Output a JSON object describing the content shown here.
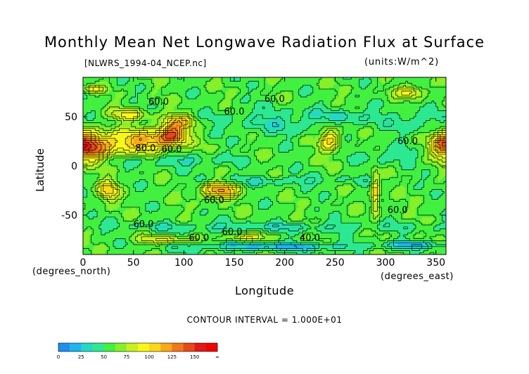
{
  "chart_data": {
    "type": "heatmap",
    "title": "Monthly Mean Net Longwave Radiation Flux at Surface",
    "subtitle_left": "[NLWRS_1994-04_NCEP.nc]",
    "units": "(units:W/m^2)",
    "xlabel": "Longitude",
    "ylabel": "Latitude",
    "x_unit_label": "(degrees_east)",
    "y_unit_label": "(degrees_north)",
    "xlim": [
      0,
      360
    ],
    "ylim": [
      -90,
      90
    ],
    "x_ticks": [
      0,
      50,
      100,
      150,
      200,
      250,
      300,
      350
    ],
    "y_ticks": [
      50,
      0,
      -50
    ],
    "contour_interval_text": "CONTOUR INTERVAL = 1.000E+01",
    "contour_labels": [
      {
        "text": "60.0",
        "lon": 75,
        "lat": 62
      },
      {
        "text": "60.0",
        "lon": 190,
        "lat": 65
      },
      {
        "text": "60.0",
        "lon": 150,
        "lat": 52
      },
      {
        "text": "80.0",
        "lon": 62,
        "lat": 15
      },
      {
        "text": "60.0",
        "lon": 88,
        "lat": 14
      },
      {
        "text": "60.0",
        "lon": 322,
        "lat": 22
      },
      {
        "text": "60.0",
        "lon": 130,
        "lat": -38
      },
      {
        "text": "60.0",
        "lon": 312,
        "lat": -48
      },
      {
        "text": "60.0",
        "lon": 60,
        "lat": -62
      },
      {
        "text": "60.0",
        "lon": 115,
        "lat": -76
      },
      {
        "text": "60.0",
        "lon": 148,
        "lat": -70
      },
      {
        "text": "40.0",
        "lon": 225,
        "lat": -76
      }
    ],
    "colorbar": {
      "ticks": [
        "0",
        "25",
        "50",
        "75",
        "100",
        "125",
        "150",
        "∞"
      ],
      "colors": [
        "#1e8ff0",
        "#20b4f0",
        "#24d8c8",
        "#2ce890",
        "#42f040",
        "#86f028",
        "#c8f020",
        "#f8f818",
        "#f8d818",
        "#f8a818",
        "#f07818",
        "#e84818",
        "#e01818",
        "#f00000"
      ]
    },
    "field": {
      "background": 57,
      "blobs": [
        {
          "lon": 0,
          "lat": 20,
          "rx": 28,
          "ry": 14,
          "v": 150
        },
        {
          "lon": 60,
          "lat": 25,
          "rx": 35,
          "ry": 12,
          "v": 110
        },
        {
          "lon": 88,
          "lat": 32,
          "rx": 14,
          "ry": 10,
          "v": 125
        },
        {
          "lon": 95,
          "lat": 45,
          "rx": 15,
          "ry": 8,
          "v": 100
        },
        {
          "lon": 45,
          "lat": 52,
          "rx": 20,
          "ry": 6,
          "v": 90
        },
        {
          "lon": 360,
          "lat": 22,
          "rx": 14,
          "ry": 14,
          "v": 140
        },
        {
          "lon": 245,
          "lat": 28,
          "rx": 10,
          "ry": 14,
          "v": 105
        },
        {
          "lon": 325,
          "lat": 75,
          "rx": 14,
          "ry": 6,
          "v": 95
        },
        {
          "lon": 10,
          "lat": 78,
          "rx": 10,
          "ry": 4,
          "v": 88
        },
        {
          "lon": 25,
          "lat": -25,
          "rx": 10,
          "ry": 10,
          "v": 105
        },
        {
          "lon": 135,
          "lat": -25,
          "rx": 18,
          "ry": 8,
          "v": 120
        },
        {
          "lon": 290,
          "lat": -28,
          "rx": 4,
          "ry": 20,
          "v": 110
        },
        {
          "lon": 80,
          "lat": -75,
          "rx": 25,
          "ry": 4,
          "v": 90
        },
        {
          "lon": 160,
          "lat": -73,
          "rx": 20,
          "ry": 4,
          "v": 88
        },
        {
          "lon": 95,
          "lat": 5,
          "rx": 50,
          "ry": 6,
          "v": 38
        },
        {
          "lon": 195,
          "lat": 45,
          "rx": 60,
          "ry": 14,
          "v": 40
        },
        {
          "lon": 265,
          "lat": 50,
          "rx": 30,
          "ry": 8,
          "v": 40
        },
        {
          "lon": 330,
          "lat": 45,
          "rx": 25,
          "ry": 12,
          "v": 40
        },
        {
          "lon": 300,
          "lat": 10,
          "rx": 25,
          "ry": 8,
          "v": 40
        },
        {
          "lon": 200,
          "lat": -15,
          "rx": 80,
          "ry": 5,
          "v": 42
        },
        {
          "lon": 180,
          "lat": -62,
          "rx": 170,
          "ry": 5,
          "v": 40
        },
        {
          "lon": 190,
          "lat": -82,
          "rx": 80,
          "ry": 4,
          "v": 20
        },
        {
          "lon": 330,
          "lat": -80,
          "rx": 30,
          "ry": 4,
          "v": 25
        }
      ]
    }
  }
}
